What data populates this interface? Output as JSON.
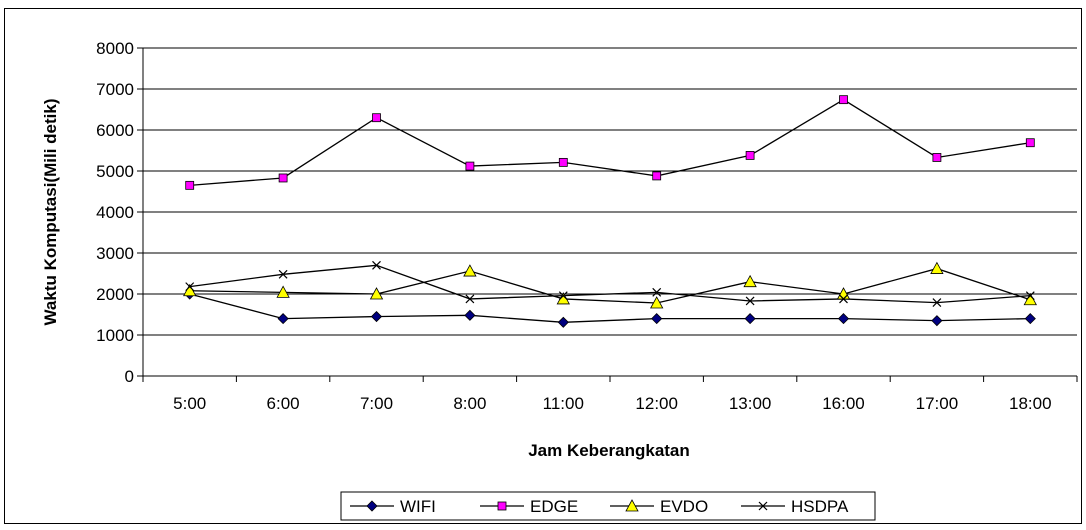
{
  "chart_data": {
    "type": "line",
    "categories": [
      "5:00",
      "6:00",
      "7:00",
      "8:00",
      "11:00",
      "12:00",
      "13:00",
      "16:00",
      "17:00",
      "18:00"
    ],
    "series": [
      {
        "name": "WIFI",
        "values": [
          2000,
          1400,
          1450,
          1480,
          1310,
          1400,
          1400,
          1400,
          1350,
          1400
        ],
        "color": "#000080",
        "marker": "diamond"
      },
      {
        "name": "EDGE",
        "values": [
          4650,
          4830,
          6300,
          5120,
          5210,
          4880,
          5380,
          6740,
          5330,
          5690
        ],
        "color": "#ff00ff",
        "marker": "square"
      },
      {
        "name": "EVDO",
        "values": [
          2080,
          2040,
          2000,
          2560,
          1880,
          1780,
          2300,
          2000,
          2620,
          1860
        ],
        "color": "#ffff00",
        "marker": "triangle"
      },
      {
        "name": "HSDPA",
        "values": [
          2180,
          2480,
          2700,
          1880,
          1960,
          2040,
          1830,
          1880,
          1790,
          1960
        ],
        "color": "#000000",
        "marker": "x"
      }
    ],
    "xlabel": "Jam Keberangkatan",
    "ylabel": "Waktu Komputasi(Mili detik)",
    "ylim": [
      0,
      8000
    ],
    "yticks": [
      0,
      1000,
      2000,
      3000,
      4000,
      5000,
      6000,
      7000,
      8000
    ],
    "grid": true,
    "legend": "bottom"
  }
}
